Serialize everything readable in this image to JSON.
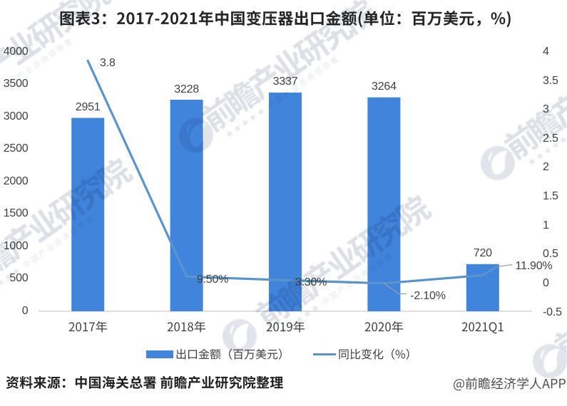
{
  "title": "图表3：2017-2021年中国变压器出口金额(单位：百万美元，%)",
  "chart_data": {
    "type": "bar+line combo",
    "categories": [
      "2017年",
      "2018年",
      "2019年",
      "2020年",
      "2021Q1"
    ],
    "series": [
      {
        "name": "出口金额（百万美元）",
        "type": "bar",
        "axis": "left",
        "values": [
          2951,
          3228,
          3337,
          3264,
          720
        ],
        "color": "#4184dc"
      },
      {
        "name": "同比变化（%）",
        "type": "line",
        "axis": "right",
        "values_plotted": [
          3.8,
          0.095,
          0.033,
          -0.021,
          0.119
        ],
        "point_labels": [
          "3.8",
          "9.50%",
          "3.30%",
          "-2.10%",
          "11.90%"
        ],
        "color": "#5b94cc"
      }
    ],
    "title": "图表3：2017-2021年中国变压器出口金额(单位：百万美元，%)",
    "left_axis": {
      "min": 0,
      "max": 4000,
      "step": 500,
      "tick_labels": [
        "4000",
        "3500",
        "3000",
        "2500",
        "2000",
        "1500",
        "1000",
        "500",
        "0"
      ]
    },
    "right_axis": {
      "min": -0.5,
      "max": 4,
      "step": 0.5,
      "tick_labels": [
        "4",
        "3.5",
        "3",
        "2.5",
        "2",
        "1.5",
        "1",
        "0.5",
        "0",
        "-0.5"
      ]
    },
    "grid": false,
    "legend_position": "bottom"
  },
  "legend": {
    "items": [
      {
        "label": "出口金额（百万美元）",
        "swatch": "bar",
        "color": "#4184dc"
      },
      {
        "label": "同比变化（%）",
        "swatch": "line",
        "color": "#5b94cc"
      }
    ]
  },
  "footer": {
    "source": "资料来源：中国海关总署 前瞻产业研究院整理",
    "credit": "@前瞻经济学人APP"
  },
  "watermark": {
    "text": "前瞻产业研究院",
    "subtext": "★★★★★ 中国产业咨询领导者",
    "logo": "qianzhan-bird-circle-logo"
  },
  "colors": {
    "bar": "#4184dc",
    "line": "#5b94cc",
    "title": "#262626",
    "labels": "#404040",
    "axis_line": "#d6d6d6",
    "watermark": "#dcdfe6",
    "credit": "#4d4d4d"
  }
}
